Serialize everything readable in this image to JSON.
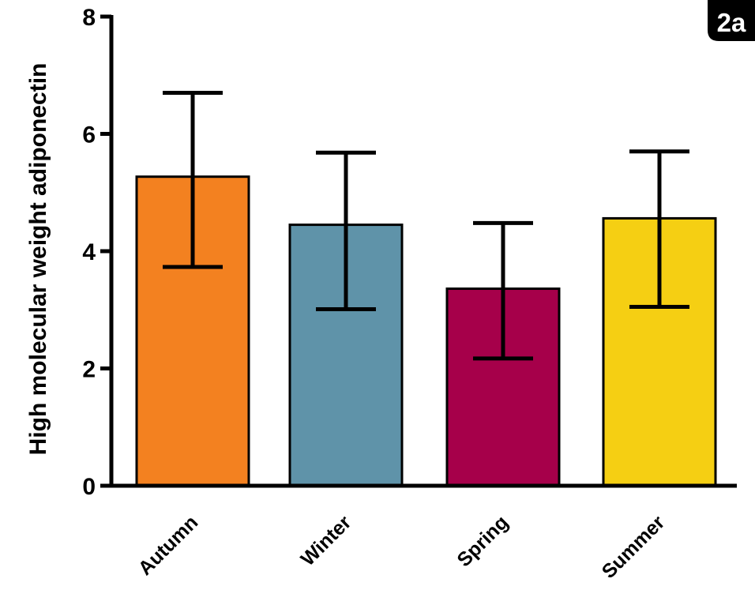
{
  "panel_label": "2a",
  "chart_data": {
    "type": "bar",
    "categories": [
      "Autumn",
      "Winter",
      "Spring",
      "Summer"
    ],
    "values": [
      5.27,
      4.45,
      3.36,
      4.56
    ],
    "error_bars": {
      "upper": [
        6.7,
        5.68,
        4.48,
        5.7
      ],
      "lower": [
        3.73,
        3.01,
        2.17,
        3.05
      ]
    },
    "colors": [
      "#F38120",
      "#5F93A9",
      "#A6004A",
      "#F5CF13"
    ],
    "ylabel": "High molecular weight adiponectin",
    "xlabel": "",
    "ylim": [
      0,
      8
    ],
    "yticks": [
      0,
      2,
      4,
      6,
      8
    ],
    "grid": false
  }
}
